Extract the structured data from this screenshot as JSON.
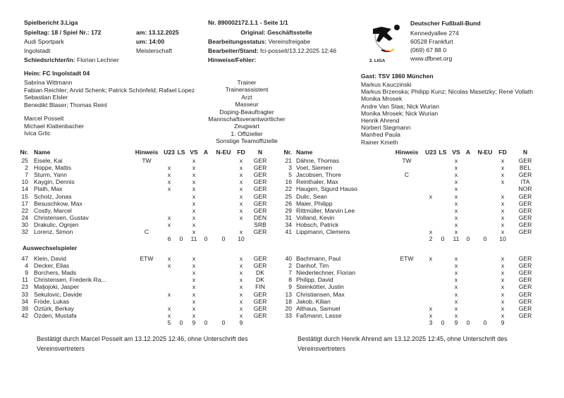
{
  "header": {
    "title": "Spielbericht 3.Liga",
    "matchday": "Spieltag: 18 / Spiel Nr.: 172",
    "venue": "Audi Sportpark",
    "city": "Ingolstadt",
    "referee_label": "Schiedsrichter/in:",
    "referee": "Florian Lechner",
    "date": "am: 13.12.2025",
    "time": "um: 14:00",
    "competition": "Meisterschaft",
    "report_no": "Nr. 890002172.1.1 - Seite 1/1",
    "original": "Original: Geschäftsstelle",
    "status_label": "Bearbeitungsstatus:",
    "status": "Vereinsfreigabe",
    "editor_label": "Bearbeiter/Stand:",
    "editor": "fci-posselt/13.12.2025 12:46",
    "notes_label": "Hinweise/Fehler:",
    "logo_text": "3. LIGA",
    "dfb": {
      "name": "Deutscher Fußball-Bund",
      "street": "Kennedyallee 274",
      "city": "60528 Frankfurt",
      "phone": "(069) 67 88 0",
      "web": "www.dfbnet.org"
    }
  },
  "home": {
    "team": "Heim: FC Ingolstadt 04",
    "officials": [
      "Sabrina Wittmann",
      "Fabian Reichler; Arvid Schenk; Patrick Schönfeld; Rafael Lopez",
      "Sebastian Elsler",
      "Benedikt Blaser; Thomas Reinl",
      "",
      "Marcel Posselt",
      "Michael Klattenbacher",
      "Ivica Grlic",
      ""
    ]
  },
  "roles": [
    "Trainer",
    "Trainerassistent",
    "Arzt",
    "Masseur",
    "Doping-Beauftragter",
    "Mannschaftsverantwortlicher",
    "Zeugwart",
    "1. Offizieller",
    "Sonstige Teamoffizielle"
  ],
  "away": {
    "team": "Gast: TSV 1860 München",
    "officials": [
      "Markus Kauczinski",
      "Markus Brzenska; Philipp Kunz; Nicolas Masetzky; René Vollath",
      "Monika Mrosek",
      "Andre Van Staa; Nick Wurian",
      "Monika Mrosek; Nick Wurian",
      "Henrik Ahrend",
      "Norbert Stegmann",
      "Manfred Paula",
      "Rainer Kmeth"
    ]
  },
  "columns": [
    "Nr.",
    "Name",
    "Hinweis",
    "U23",
    "LS",
    "VS",
    "A",
    "N-EU",
    "FD",
    "N"
  ],
  "subs_label": "Auswechselspieler",
  "home_starters": [
    [
      "25",
      "Eisele, Kai",
      "TW",
      "",
      "",
      "x",
      "",
      "",
      "x",
      "GER"
    ],
    [
      "2",
      "Hoppe, Mattis",
      "",
      "x",
      "",
      "x",
      "",
      "",
      "x",
      "GER"
    ],
    [
      "7",
      "Sturm, Yann",
      "",
      "x",
      "",
      "x",
      "",
      "",
      "x",
      "GER"
    ],
    [
      "10",
      "Kaygin, Dennis",
      "",
      "x",
      "",
      "x",
      "",
      "",
      "x",
      "GER"
    ],
    [
      "14",
      "Plath, Max",
      "",
      "x",
      "",
      "x",
      "",
      "",
      "x",
      "GER"
    ],
    [
      "15",
      "Scholz, Jonas",
      "",
      "",
      "",
      "x",
      "",
      "",
      "x",
      "GER"
    ],
    [
      "17",
      "Besuschkow, Max",
      "",
      "",
      "",
      "x",
      "",
      "",
      "x",
      "GER"
    ],
    [
      "22",
      "Costly, Marcel",
      "",
      "",
      "",
      "x",
      "",
      "",
      "x",
      "GER"
    ],
    [
      "24",
      "Christensen, Gustav",
      "",
      "x",
      "",
      "x",
      "",
      "",
      "x",
      "DEN"
    ],
    [
      "30",
      "Drakulic, Ognjen",
      "",
      "x",
      "",
      "x",
      "",
      "",
      "",
      "SRB"
    ],
    [
      "32",
      "Lorenz, Simon",
      "C",
      "",
      "",
      "x",
      "",
      "",
      "x",
      "GER"
    ]
  ],
  "home_starters_totals": [
    "6",
    "0",
    "11",
    "0",
    "0",
    "10"
  ],
  "home_subs": [
    [
      "47",
      "Klein, David",
      "ETW",
      "x",
      "",
      "x",
      "",
      "",
      "x",
      "GER"
    ],
    [
      "4",
      "Decker, Elias",
      "",
      "x",
      "",
      "x",
      "",
      "",
      "x",
      "GER"
    ],
    [
      "9",
      "Borchers, Mads",
      "",
      "",
      "",
      "x",
      "",
      "",
      "x",
      "DK"
    ],
    [
      "11",
      "Christensen, Frederik Ra...",
      "",
      "",
      "",
      "x",
      "",
      "",
      "x",
      "DK"
    ],
    [
      "23",
      "Maljojoki, Jasper",
      "",
      "",
      "",
      "x",
      "",
      "",
      "x",
      "FIN"
    ],
    [
      "33",
      "Sekulovic, Davide",
      "",
      "x",
      "",
      "x",
      "",
      "",
      "x",
      "GER"
    ],
    [
      "34",
      "Fröde, Lukas",
      "",
      "",
      "",
      "x",
      "",
      "",
      "x",
      "GER"
    ],
    [
      "39",
      "Öztürk, Berkay",
      "",
      "x",
      "",
      "x",
      "",
      "",
      "x",
      "GER"
    ],
    [
      "42",
      "Özden, Mustafa",
      "",
      "x",
      "",
      "x",
      "",
      "",
      "x",
      "GER"
    ]
  ],
  "home_subs_totals": [
    "5",
    "0",
    "9",
    "0",
    "0",
    "9"
  ],
  "away_starters": [
    [
      "21",
      "Dähne, Thomas",
      "TW",
      "",
      "",
      "x",
      "",
      "",
      "x",
      "GER"
    ],
    [
      "3",
      "Voet, Siemen",
      "",
      "",
      "",
      "x",
      "",
      "",
      "x",
      "BEL"
    ],
    [
      "5",
      "Jacobsen, Thore",
      "C",
      "",
      "",
      "x",
      "",
      "",
      "x",
      "GER"
    ],
    [
      "16",
      "Reinthaler, Max",
      "",
      "",
      "",
      "x",
      "",
      "",
      "x",
      "ITA"
    ],
    [
      "22",
      "Haugen, Sigurd Hauso",
      "",
      "",
      "",
      "x",
      "",
      "",
      "",
      "NOR"
    ],
    [
      "25",
      "Dulic, Sean",
      "",
      "x",
      "",
      "x",
      "",
      "",
      "x",
      "GER"
    ],
    [
      "26",
      "Maier, Philipp",
      "",
      "",
      "",
      "x",
      "",
      "",
      "x",
      "GER"
    ],
    [
      "29",
      "Rittmüller, Marvin Lee",
      "",
      "",
      "",
      "x",
      "",
      "",
      "x",
      "GER"
    ],
    [
      "31",
      "Volland, Kevin",
      "",
      "",
      "",
      "x",
      "",
      "",
      "x",
      "GER"
    ],
    [
      "34",
      "Hobsch, Patrick",
      "",
      "",
      "",
      "x",
      "",
      "",
      "x",
      "GER"
    ],
    [
      "41",
      "Lippmann, Clemens",
      "",
      "x",
      "",
      "x",
      "",
      "",
      "x",
      "GER"
    ]
  ],
  "away_starters_totals": [
    "2",
    "0",
    "11",
    "0",
    "0",
    "10"
  ],
  "away_subs": [
    [
      "40",
      "Bachmann, Paul",
      "ETW",
      "x",
      "",
      "x",
      "",
      "",
      "x",
      "GER"
    ],
    [
      "2",
      "Danhof, Tim",
      "",
      "",
      "",
      "x",
      "",
      "",
      "x",
      "GER"
    ],
    [
      "7",
      "Niederlechner, Florian",
      "",
      "",
      "",
      "x",
      "",
      "",
      "x",
      "GER"
    ],
    [
      "8",
      "Philipp, David",
      "",
      "",
      "",
      "x",
      "",
      "",
      "x",
      "GER"
    ],
    [
      "9",
      "Steinkötter, Justin",
      "",
      "",
      "",
      "x",
      "",
      "",
      "x",
      "GER"
    ],
    [
      "13",
      "Christiansen, Max",
      "",
      "",
      "",
      "x",
      "",
      "",
      "x",
      "GER"
    ],
    [
      "18",
      "Jakob, Kilian",
      "",
      "",
      "",
      "x",
      "",
      "",
      "x",
      "GER"
    ],
    [
      "20",
      "Althaus, Samuel",
      "",
      "x",
      "",
      "x",
      "",
      "",
      "x",
      "GER"
    ],
    [
      "33",
      "Faßmann, Lasse",
      "",
      "x",
      "",
      "x",
      "",
      "",
      "x",
      "GER"
    ]
  ],
  "away_subs_totals": [
    "3",
    "0",
    "9",
    "0",
    "0",
    "9"
  ],
  "footer": {
    "home_confirm": "Bestätigt durch Marcel Posselt am 13.12.2025 12:46, ohne Unterschrift des Vereinsvertreters",
    "away_confirm": "Bestätigt durch Henrik Ahrend am 13.12.2025 12:45, ohne Unterschrift des Vereinsvertreters"
  }
}
